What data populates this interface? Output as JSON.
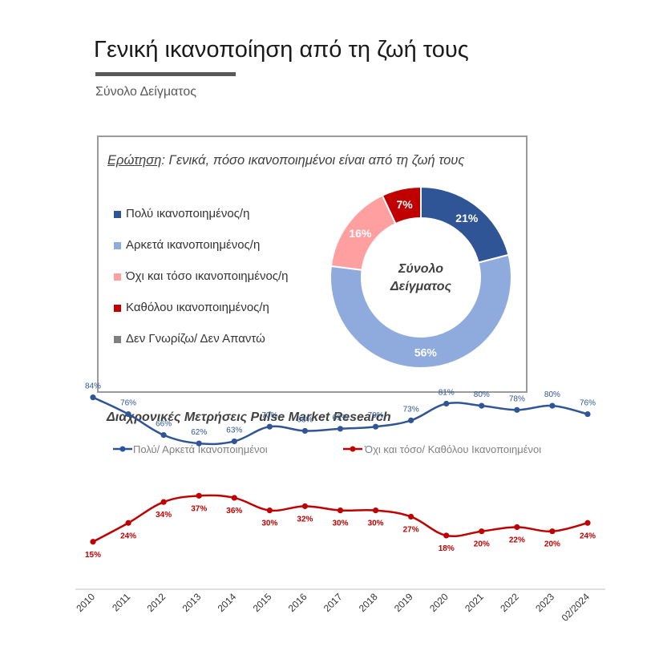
{
  "page": {
    "title": "Γενική ικανοποίηση από τη ζωή τους",
    "subtitle": "Σύνολο Δείγματος"
  },
  "colors": {
    "very": "#2f5597",
    "quite": "#8faadc",
    "not_so": "#ff9f9f",
    "not_at_all": "#c00000",
    "dk": "#7f7f7f",
    "trend_pos": "#2f5597",
    "trend_neg": "#c00000"
  },
  "chart_data": [
    {
      "type": "pie",
      "variant": "donut",
      "question_label": "Ερώτηση",
      "question_text": ": Γενικά, πόσο ικανοποιημένοι είναι από τη ζωή τους",
      "center_label": [
        "Σύνολο",
        "Δείγματος"
      ],
      "legend_position": "left",
      "slices": [
        {
          "label": "Πολύ ικανοποιημένος/η",
          "value": 21,
          "display": "21%",
          "color": "#2f5597"
        },
        {
          "label": "Αρκετά ικανοποιημένος/η",
          "value": 56,
          "display": "56%",
          "color": "#8faadc"
        },
        {
          "label": "Όχι και τόσο ικανοποιημένος/η",
          "value": 16,
          "display": "16%",
          "color": "#ff9f9f"
        },
        {
          "label": "Καθόλου ικανοποιημένος/η",
          "value": 7,
          "display": "7%",
          "color": "#c00000"
        },
        {
          "label": "Δεν Γνωρίζω/ Δεν Απαντώ",
          "value": 0,
          "display": "",
          "color": "#7f7f7f"
        }
      ]
    },
    {
      "type": "line",
      "title": "Διαχρονικές Μετρήσεις Pulse Market Research",
      "legend_position": "top",
      "x": [
        "2010",
        "2011",
        "2012",
        "2013",
        "2014",
        "2015",
        "2016",
        "2017",
        "2018",
        "2019",
        "2020",
        "2021",
        "2022",
        "2023",
        "02/2024"
      ],
      "series": [
        {
          "name": "Πολύ/ Αρκετά Ικανοποιημένοι",
          "color": "#2f5597",
          "values": [
            84,
            76,
            66,
            62,
            63,
            70,
            68,
            69,
            70,
            73,
            81,
            80,
            78,
            80,
            76
          ],
          "labels": [
            "84%",
            "76%",
            "66%",
            "62%",
            "63%",
            "70%",
            "68%",
            "69%",
            "70%",
            "73%",
            "81%",
            "80%",
            "78%",
            "80%",
            "76%"
          ]
        },
        {
          "name": "Όχι και τόσο/ Καθόλου Ικανοποιημένοι",
          "color": "#c00000",
          "values": [
            15,
            24,
            34,
            37,
            36,
            30,
            32,
            30,
            30,
            27,
            18,
            20,
            22,
            20,
            24
          ],
          "labels": [
            "15%",
            "24%",
            "34%",
            "37%",
            "36%",
            "30%",
            "32%",
            "30%",
            "30%",
            "27%",
            "18%",
            "20%",
            "22%",
            "20%",
            "24%"
          ]
        }
      ]
    }
  ]
}
